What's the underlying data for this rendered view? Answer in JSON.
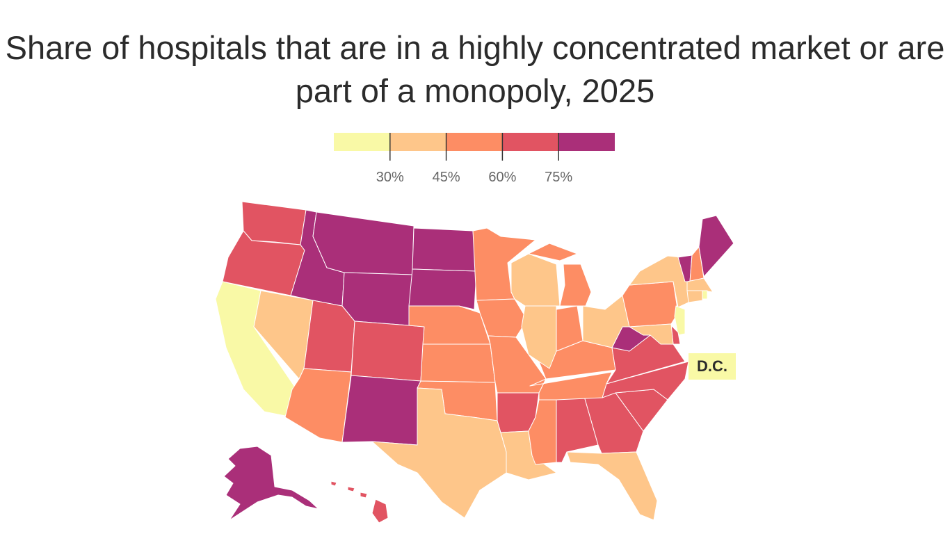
{
  "title": "Share of hospitals that are in a highly concentrated market or are part of a monopoly, 2025",
  "chart_data": {
    "type": "choropleth",
    "title": "Share of hospitals that are in a highly concentrated market or are part of a monopoly, 2025",
    "legend": {
      "thresholds": [
        30,
        45,
        60,
        75
      ],
      "tick_labels": [
        "30%",
        "45%",
        "60%",
        "75%"
      ],
      "colors": [
        "#f9f9a6",
        "#fec68a",
        "#fd8d64",
        "#e15462",
        "#aa2f79"
      ],
      "placement": "top-center"
    },
    "bins_meaning": "1: <30%, 2: 30-45%, 3: 45-60%, 4: 60-75%, 5: >75%",
    "states": {
      "WA": 4,
      "OR": 4,
      "CA": 1,
      "NV": 2,
      "ID": 5,
      "MT": 5,
      "WY": 5,
      "UT": 4,
      "CO": 4,
      "AZ": 3,
      "NM": 5,
      "ND": 5,
      "SD": 5,
      "NE": 3,
      "KS": 3,
      "OK": 3,
      "TX": 2,
      "MN": 3,
      "IA": 3,
      "MO": 3,
      "AR": 4,
      "LA": 2,
      "WI": 2,
      "IL": 2,
      "MI": 3,
      "IN": 3,
      "OH": 2,
      "KY": 3,
      "TN": 3,
      "MS": 3,
      "AL": 4,
      "GA": 4,
      "FL": 2,
      "SC": 4,
      "NC": 4,
      "VA": 4,
      "WV": 5,
      "PA": 3,
      "NY": 2,
      "VT": 5,
      "NH": 3,
      "ME": 5,
      "MA": 2,
      "CT": 2,
      "RI": 1,
      "NJ": 1,
      "DE": 4,
      "MD": 2,
      "DC": 1,
      "AK": 5,
      "HI": 4
    },
    "annotations": [
      "D.C."
    ]
  }
}
